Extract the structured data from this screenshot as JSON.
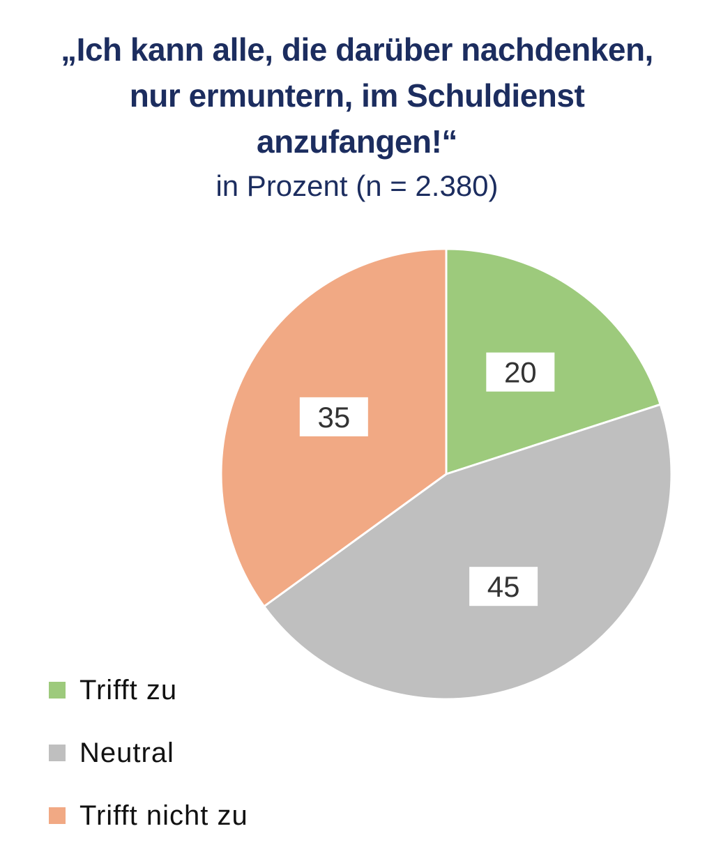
{
  "chart_data": {
    "type": "pie",
    "title_lines": [
      "„Ich kann alle, die darüber nachdenken,",
      "nur ermuntern, im Schuldienst",
      "anzufangen!“"
    ],
    "subtitle": "in Prozent (n = 2.380)",
    "categories": [
      "Trifft zu",
      "Neutral",
      "Trifft nicht zu"
    ],
    "values": [
      20,
      45,
      35
    ],
    "data_labels": [
      "20",
      "45",
      "35"
    ],
    "colors": [
      "#9dca7c",
      "#bfbfbf",
      "#f1a984"
    ],
    "start_angle": "12 o'clock",
    "direction": "clockwise",
    "legend_position": "bottom-left"
  }
}
